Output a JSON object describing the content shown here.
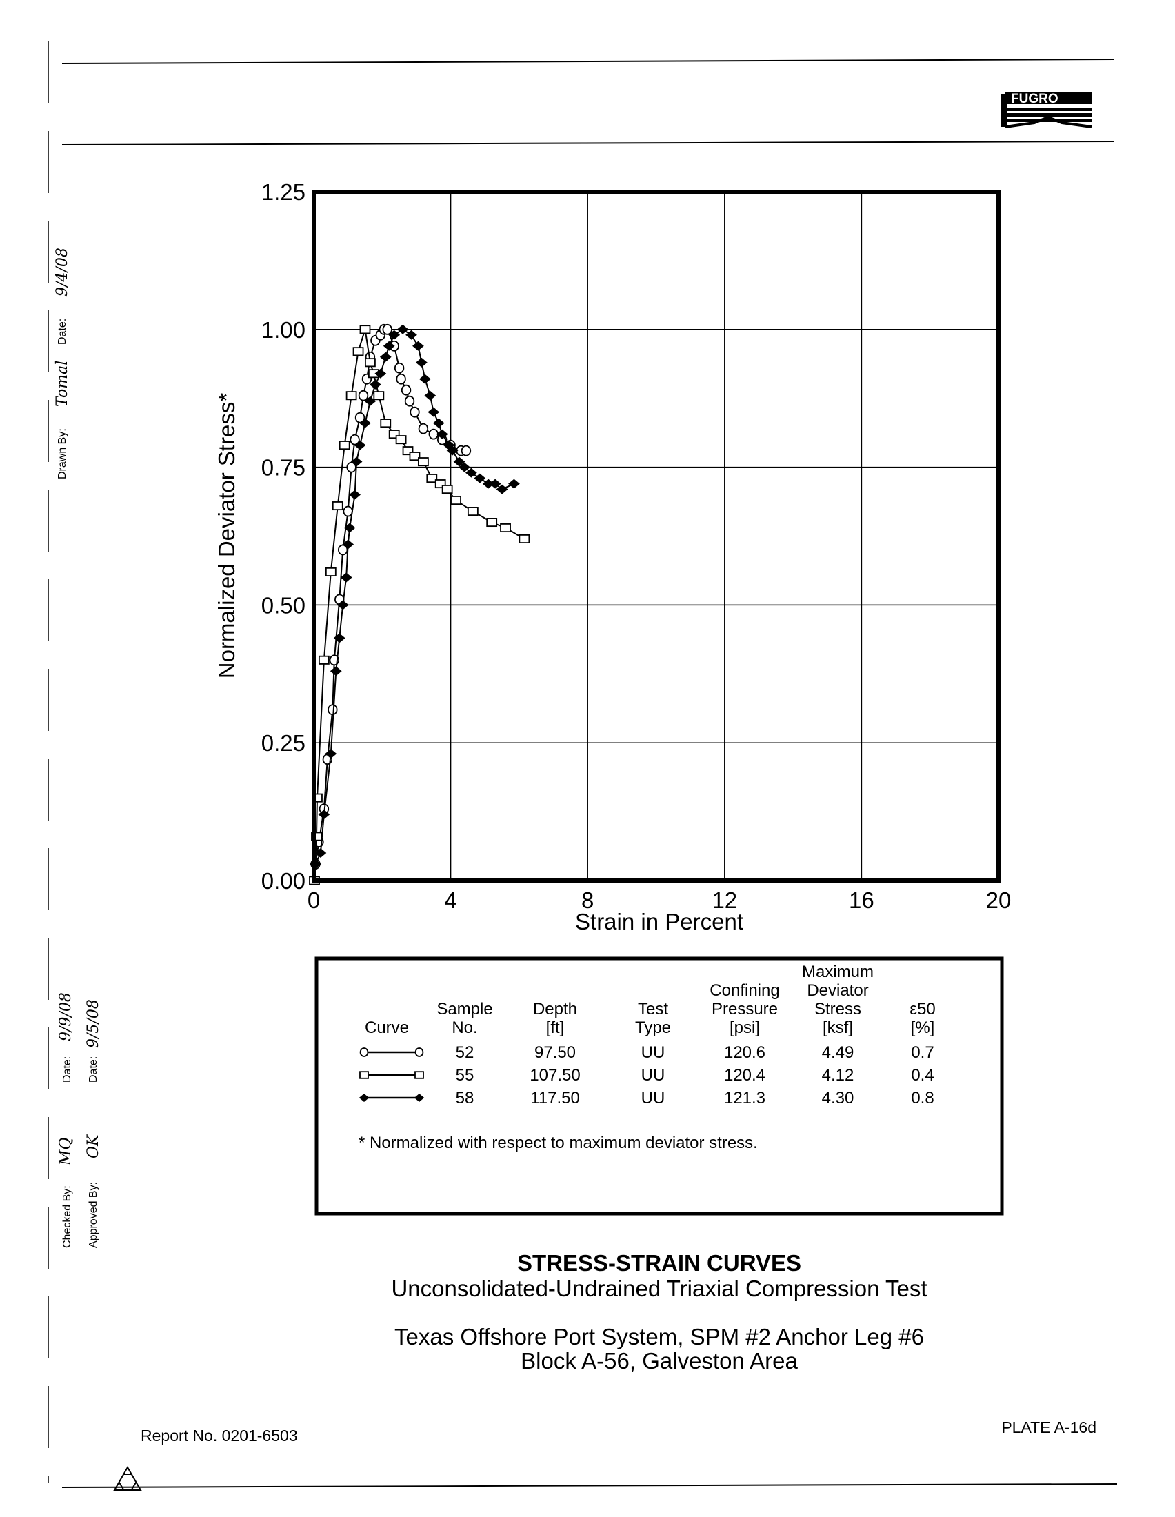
{
  "header": {
    "logo_text": "FUGRO"
  },
  "side_labels": {
    "drawn_by": "Drawn By:",
    "drawn_by_sig": "Tomal",
    "drawn_date_label": "Date:",
    "drawn_date": "9/4/08",
    "checked_by": "Checked By:",
    "checked_by_sig": "MQ",
    "checked_date_label": "Date:",
    "checked_date": "9/9/08",
    "approved_by": "Approved By:",
    "approved_by_sig": "OK",
    "approved_date_label": "Date:",
    "approved_date": "9/5/08"
  },
  "chart_data": {
    "type": "line",
    "xlabel": "Strain in Percent",
    "ylabel": "Normalized Deviator Stress*",
    "xlim": [
      0,
      20
    ],
    "ylim": [
      0,
      1.25
    ],
    "xticks": [
      "0",
      "4",
      "8",
      "12",
      "16",
      "20"
    ],
    "yticks": [
      "0.00",
      "0.25",
      "0.50",
      "0.75",
      "1.00",
      "1.25"
    ],
    "grid": true,
    "series": [
      {
        "name": "52",
        "marker": "circle-open",
        "x": [
          0.05,
          0.15,
          0.3,
          0.4,
          0.55,
          0.6,
          0.75,
          0.85,
          1.0,
          1.1,
          1.2,
          1.35,
          1.45,
          1.55,
          1.65,
          1.8,
          1.95,
          2.05,
          2.15,
          2.35,
          2.5,
          2.55,
          2.7,
          2.8,
          2.95,
          3.2,
          3.5,
          3.75,
          4.0,
          4.3,
          4.45
        ],
        "y": [
          0.03,
          0.07,
          0.13,
          0.22,
          0.31,
          0.4,
          0.51,
          0.6,
          0.67,
          0.75,
          0.8,
          0.84,
          0.88,
          0.91,
          0.95,
          0.98,
          0.99,
          1.0,
          1.0,
          0.97,
          0.93,
          0.91,
          0.89,
          0.87,
          0.85,
          0.82,
          0.81,
          0.8,
          0.79,
          0.78,
          0.78
        ]
      },
      {
        "name": "55",
        "marker": "square-open",
        "x": [
          0.02,
          0.08,
          0.1,
          0.3,
          0.5,
          0.7,
          0.9,
          1.1,
          1.3,
          1.5,
          1.65,
          1.75,
          1.9,
          2.1,
          2.35,
          2.55,
          2.75,
          2.95,
          3.2,
          3.45,
          3.7,
          3.9,
          4.15,
          4.65,
          5.2,
          5.6,
          6.15
        ],
        "y": [
          0.0,
          0.08,
          0.15,
          0.4,
          0.56,
          0.68,
          0.79,
          0.88,
          0.96,
          1.0,
          0.94,
          0.92,
          0.88,
          0.83,
          0.81,
          0.8,
          0.78,
          0.77,
          0.76,
          0.73,
          0.72,
          0.71,
          0.69,
          0.67,
          0.65,
          0.64,
          0.62
        ]
      },
      {
        "name": "58",
        "marker": "diamond-filled",
        "x": [
          0.05,
          0.2,
          0.3,
          0.5,
          0.65,
          0.75,
          0.85,
          0.95,
          1.0,
          1.05,
          1.2,
          1.25,
          1.35,
          1.5,
          1.65,
          1.8,
          1.95,
          2.1,
          2.2,
          2.35,
          2.6,
          2.85,
          3.05,
          3.15,
          3.25,
          3.4,
          3.5,
          3.65,
          3.75,
          3.95,
          4.05,
          4.25,
          4.4,
          4.6,
          4.85,
          5.1,
          5.3,
          5.5,
          5.85
        ],
        "y": [
          0.03,
          0.05,
          0.12,
          0.23,
          0.38,
          0.44,
          0.5,
          0.55,
          0.61,
          0.64,
          0.7,
          0.76,
          0.79,
          0.83,
          0.87,
          0.9,
          0.92,
          0.95,
          0.97,
          0.99,
          1.0,
          0.99,
          0.97,
          0.94,
          0.91,
          0.88,
          0.85,
          0.83,
          0.81,
          0.79,
          0.78,
          0.76,
          0.75,
          0.74,
          0.73,
          0.72,
          0.72,
          0.71,
          0.72
        ]
      }
    ]
  },
  "legend_table": {
    "headers": [
      [
        "Curve"
      ],
      [
        "Sample",
        "No."
      ],
      [
        "Depth",
        "[ft]"
      ],
      [
        "Test",
        "Type"
      ],
      [
        "Confining",
        "Pressure",
        "[psi]"
      ],
      [
        "Maximum",
        "Deviator",
        "Stress",
        "[ksf]"
      ],
      [
        "ε50",
        "[%]"
      ]
    ],
    "rows": [
      {
        "marker": "circle-open",
        "sample": "52",
        "depth": "97.50",
        "test": "UU",
        "pressure": "120.6",
        "max_stress": "4.49",
        "e50": "0.7"
      },
      {
        "marker": "square-open",
        "sample": "55",
        "depth": "107.50",
        "test": "UU",
        "pressure": "120.4",
        "max_stress": "4.12",
        "e50": "0.4"
      },
      {
        "marker": "diamond-filled",
        "sample": "58",
        "depth": "117.50",
        "test": "UU",
        "pressure": "121.3",
        "max_stress": "4.30",
        "e50": "0.8"
      }
    ],
    "note": "* Normalized with respect to maximum deviator stress."
  },
  "title": {
    "main": "STRESS-STRAIN CURVES",
    "sub": "Unconsolidated-Undrained Triaxial Compression Test",
    "project1": "Texas Offshore Port System, SPM #2 Anchor Leg #6",
    "project2": "Block A-56, Galveston Area"
  },
  "footer": {
    "report": "Report No. 0201-6503",
    "plate": "PLATE A-16d"
  }
}
